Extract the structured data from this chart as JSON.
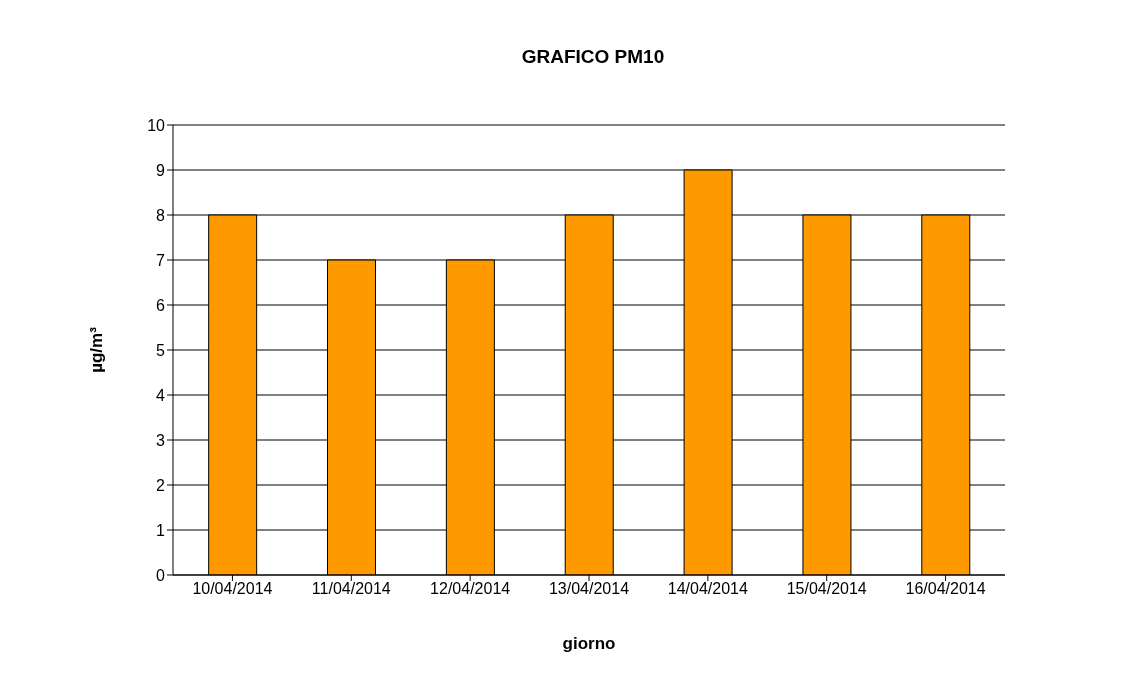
{
  "chart_data": {
    "type": "bar",
    "title": "GRAFICO PM10",
    "xlabel": "giorno",
    "ylabel": "µg/m³",
    "categories": [
      "10/04/2014",
      "11/04/2014",
      "12/04/2014",
      "13/04/2014",
      "14/04/2014",
      "15/04/2014",
      "16/04/2014"
    ],
    "values": [
      8,
      7,
      7,
      8,
      9,
      8,
      8
    ],
    "color": "#ff9900",
    "ylim": [
      0,
      10
    ],
    "yticks": [
      0,
      1,
      2,
      3,
      4,
      5,
      6,
      7,
      8,
      9,
      10
    ],
    "grid": "y"
  }
}
